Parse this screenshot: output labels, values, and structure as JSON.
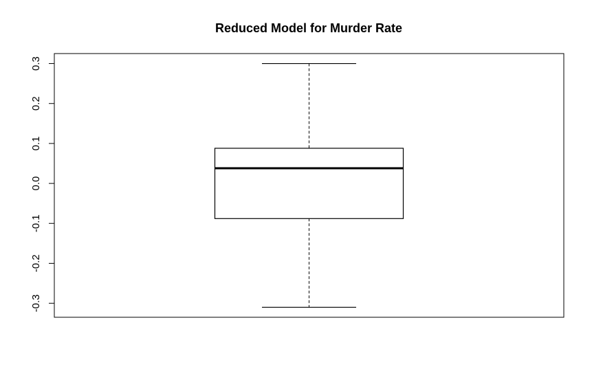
{
  "chart_data": {
    "type": "boxplot",
    "title": "Reduced Model for Murder Rate",
    "xlabel": "",
    "ylabel": "",
    "ylim": [
      -0.335,
      0.325
    ],
    "yticks": [
      -0.3,
      -0.2,
      -0.1,
      0.0,
      0.1,
      0.2,
      0.3
    ],
    "ytick_labels": [
      "-0.3",
      "-0.2",
      "-0.1",
      "0.0",
      "0.1",
      "0.2",
      "0.3"
    ],
    "grid": false,
    "legend": "none",
    "boxes": [
      {
        "whisker_low": -0.31,
        "q1": -0.088,
        "median": 0.038,
        "q3": 0.088,
        "whisker_high": 0.3
      }
    ],
    "colors": {
      "stroke": "#000000",
      "background": "#ffffff"
    }
  }
}
